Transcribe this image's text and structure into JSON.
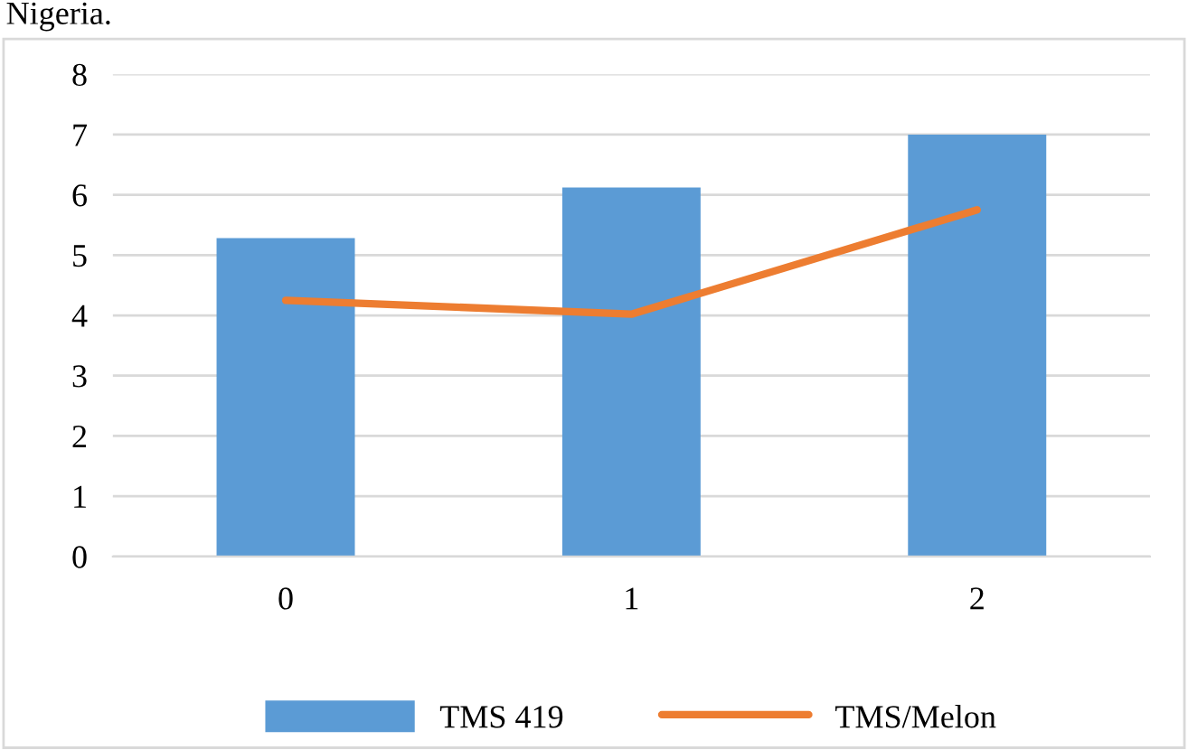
{
  "chart_data": {
    "type": "bar",
    "annotations": [
      "Nigeria."
    ],
    "categories": [
      "0",
      "1",
      "2"
    ],
    "series": [
      {
        "name": "TMS 419",
        "color": "#5b9bd5",
        "values": [
          5.28,
          6.12,
          7.0
        ]
      },
      {
        "name": "TMS/Melon",
        "type": "line",
        "color": "#ed7d31",
        "values": [
          4.25,
          4.02,
          5.75
        ]
      }
    ],
    "ylim": [
      0,
      8
    ],
    "yticks": [
      0,
      1,
      2,
      3,
      4,
      5,
      6,
      7,
      8
    ],
    "grid": "y",
    "legend": "bottom",
    "marker": "none",
    "line_style": "solid"
  }
}
